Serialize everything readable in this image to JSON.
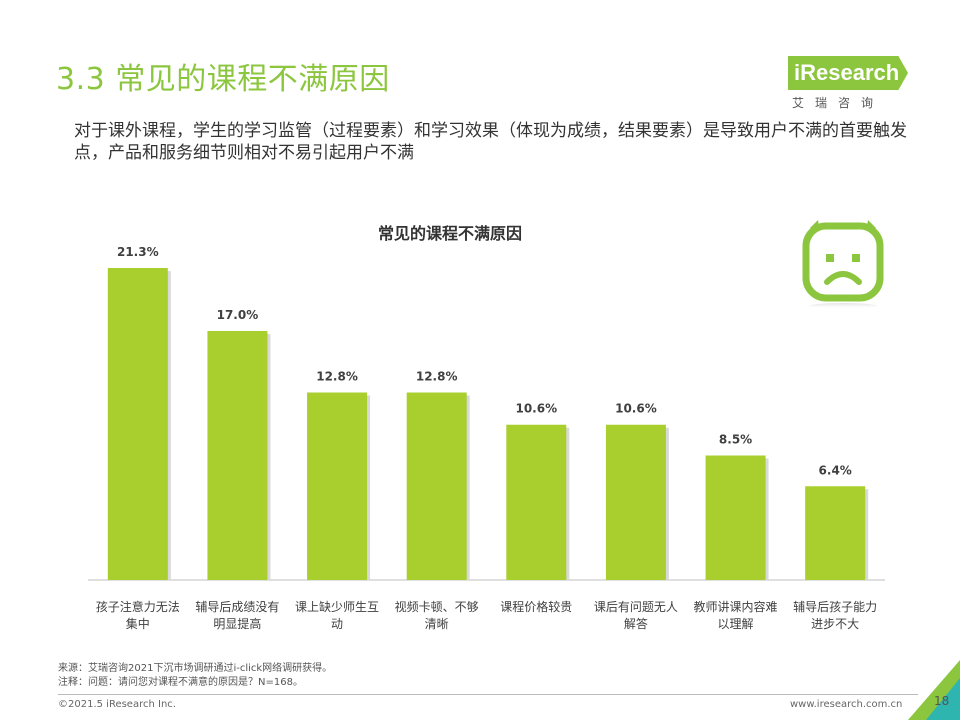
{
  "header": {
    "title": "3.3 常见的课程不满原因",
    "subtitle": "对于课外课程，学生的学习监管（过程要素）和学习效果（体现为成绩，结果要素）是导致用户不满的首要触发点，产品和服务细节则相对不易引起用户不满"
  },
  "brand": {
    "name": "iResearch",
    "sub": "艾瑞咨询",
    "color": "#8cc63f"
  },
  "chart_data": {
    "type": "bar",
    "title": "常见的课程不满原因",
    "categories": [
      [
        "孩子注意力无法",
        "集中"
      ],
      [
        "辅导后成绩没有",
        "明显提高"
      ],
      [
        "课上缺少师生互",
        "动"
      ],
      [
        "视频卡顿、不够",
        "清晰"
      ],
      [
        "课程价格较贵"
      ],
      [
        "课后有问题无人",
        "解答"
      ],
      [
        "教师讲课内容难",
        "以理解"
      ],
      [
        "辅导后孩子能力",
        "进步不大"
      ]
    ],
    "values": [
      21.3,
      17.0,
      12.8,
      12.8,
      10.6,
      10.6,
      8.5,
      6.4
    ],
    "labels": [
      "21.3%",
      "17.0%",
      "12.8%",
      "12.8%",
      "10.6%",
      "10.6%",
      "8.5%",
      "6.4%"
    ],
    "ylim": [
      0,
      21.3
    ],
    "bar_color": "#a8cf2e",
    "xlabel": "",
    "ylabel": ""
  },
  "footer": {
    "source": "来源：艾瑞咨询2021下沉市场调研通过i-click网络调研获得。",
    "note": "注释：问题：请问您对课程不满意的原因是？N=168。",
    "copyright": "©2021.5 iResearch Inc.",
    "url": "www.iresearch.com.cn",
    "page": "18"
  }
}
